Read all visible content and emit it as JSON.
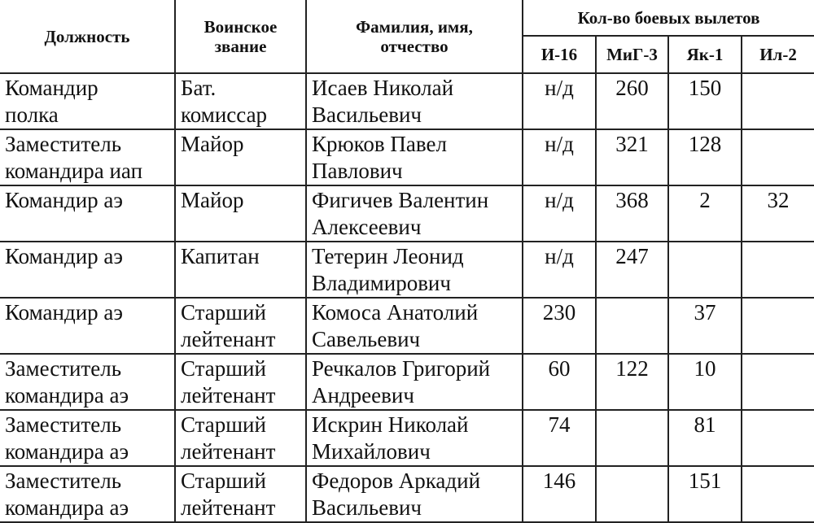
{
  "header": {
    "position": "Должность",
    "rank": "Воинское звание",
    "name": "Фамилия, имя, отчество",
    "sorties": "Кол-во боевых вылетов",
    "aircraft": [
      "И-16",
      "МиГ-3",
      "Як-1",
      "Ил-2"
    ]
  },
  "rows": [
    {
      "position": [
        "Командир",
        "полка"
      ],
      "rank": [
        "Бат.",
        "комиссар"
      ],
      "name": [
        "Исаев Николай",
        "Васильевич"
      ],
      "sorties": [
        "н/д",
        "260",
        "150",
        ""
      ]
    },
    {
      "position": [
        "Заместитель",
        "командира иап"
      ],
      "rank": [
        "Майор"
      ],
      "name": [
        "Крюков Павел",
        "Павлович"
      ],
      "sorties": [
        "н/д",
        "321",
        "128",
        ""
      ]
    },
    {
      "position": [
        "Командир аэ"
      ],
      "rank": [
        "Майор"
      ],
      "name": [
        "Фигичев Валентин",
        "Алексеевич"
      ],
      "sorties": [
        "н/д",
        "368",
        "2",
        "32"
      ]
    },
    {
      "position": [
        "Командир аэ"
      ],
      "rank": [
        "Капитан"
      ],
      "name": [
        "Тетерин Леонид",
        "Владимирович"
      ],
      "sorties": [
        "н/д",
        "247",
        "",
        ""
      ]
    },
    {
      "position": [
        "Командир аэ"
      ],
      "rank": [
        "Старший",
        "лейтенант"
      ],
      "name": [
        "Комоса Анатолий",
        "Савельевич"
      ],
      "sorties": [
        "230",
        "",
        "37",
        ""
      ]
    },
    {
      "position": [
        "Заместитель",
        "командира аэ"
      ],
      "rank": [
        "Старший",
        "лейтенант"
      ],
      "name": [
        "Речкалов Григорий",
        "Андреевич"
      ],
      "sorties": [
        "60",
        "122",
        "10",
        ""
      ]
    },
    {
      "position": [
        "Заместитель",
        "командира аэ"
      ],
      "rank": [
        "Старший",
        "лейтенант"
      ],
      "name": [
        "Искрин Николай",
        "Михайлович"
      ],
      "sorties": [
        "74",
        "",
        "81",
        ""
      ]
    },
    {
      "position": [
        "Заместитель",
        "командира аэ"
      ],
      "rank": [
        "Старший",
        "лейтенант"
      ],
      "name": [
        "Федоров Аркадий",
        "Васильевич"
      ],
      "sorties": [
        "146",
        "",
        "151",
        ""
      ]
    }
  ]
}
